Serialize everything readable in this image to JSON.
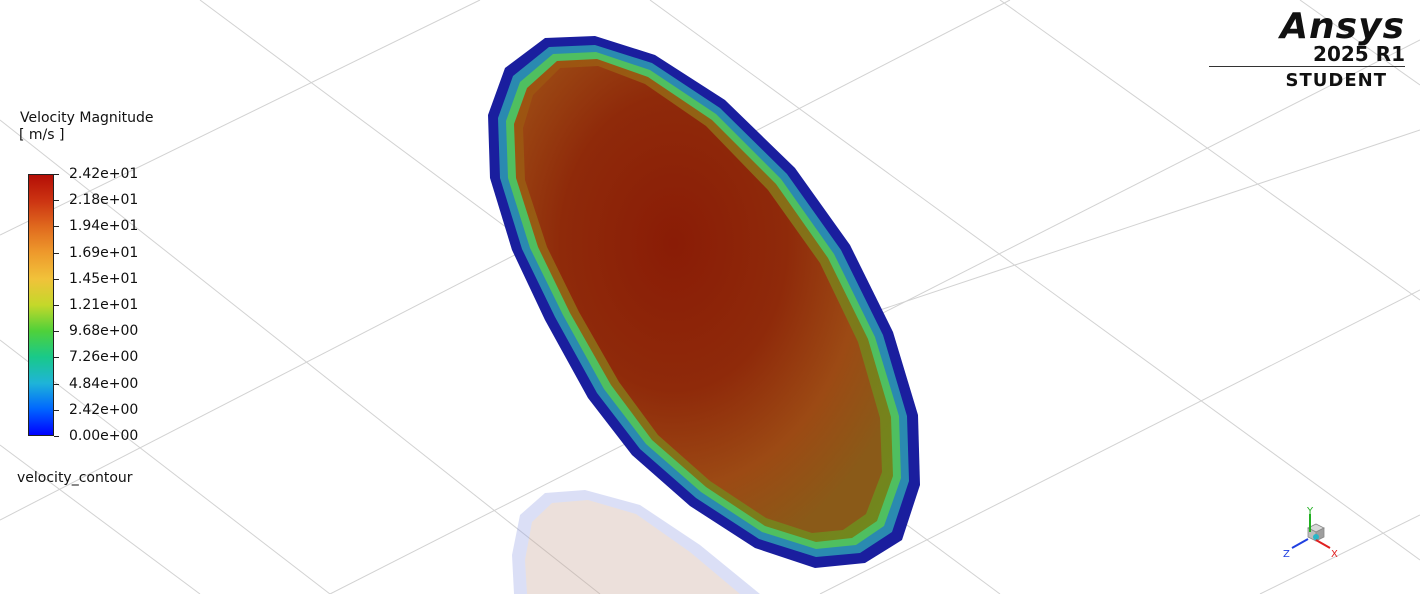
{
  "legend": {
    "title": "Velocity Magnitude",
    "unit": "[ m/s ]",
    "tick_labels": [
      "2.42e+01",
      "2.18e+01",
      "1.94e+01",
      "1.69e+01",
      "1.45e+01",
      "1.21e+01",
      "9.68e+00",
      "7.26e+00",
      "4.84e+00",
      "2.42e+00",
      "0.00e+00"
    ],
    "colormap": [
      "#0000ff",
      "#0066ff",
      "#1fb4d8",
      "#19c98a",
      "#4fd13a",
      "#c4d82a",
      "#f1c23a",
      "#ee9a2c",
      "#e06a1e",
      "#cc3412",
      "#b40e06"
    ]
  },
  "contour_name": "velocity_contour",
  "logo": {
    "brand": "Ansys",
    "release": "2025 R1",
    "edition": "STUDENT"
  },
  "triad": {
    "x_label": "X",
    "y_label": "Y",
    "z_label": "Z",
    "x_color": "#e02020",
    "y_color": "#20b020",
    "z_color": "#2040e0"
  }
}
